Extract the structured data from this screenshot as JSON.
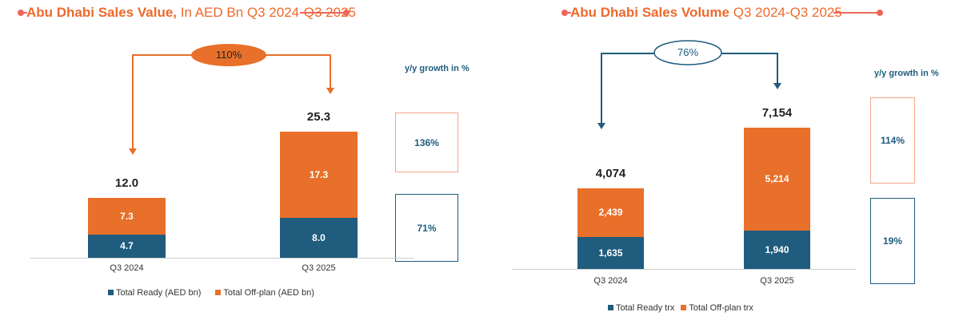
{
  "colors": {
    "ready": "#1F5C7E",
    "offplan": "#E8702A",
    "title": "#EE6A2C",
    "accent_line": "#F0665A"
  },
  "chart_data": [
    {
      "type": "bar",
      "stacked": true,
      "title_bold": "Abu Dhabi Sales Value,",
      "title_rest": " In AED Bn Q3 2024-Q3 2025",
      "categories": [
        "Q3 2024",
        "Q3 2025"
      ],
      "series": [
        {
          "name": "Total Ready (AED bn)",
          "values": [
            4.7,
            8.0
          ],
          "labels": [
            "4.7",
            "8.0"
          ]
        },
        {
          "name": "Total Off-plan (AED bn)",
          "values": [
            7.3,
            17.3
          ],
          "labels": [
            "7.3",
            "17.3"
          ]
        }
      ],
      "totals": [
        "12.0",
        "25.3"
      ],
      "total_growth": "110%",
      "growth_label": "y/y growth in %",
      "growth": {
        "offplan": "136%",
        "ready": "71%"
      },
      "legend": "bottom"
    },
    {
      "type": "bar",
      "stacked": true,
      "title_bold": "Abu Dhabi Sales Volume",
      "title_rest": " Q3 2024-Q3 2025",
      "categories": [
        "Q3 2024",
        "Q3 2025"
      ],
      "series": [
        {
          "name": "Total Ready trx",
          "values": [
            1635,
            1940
          ],
          "labels": [
            "1,635",
            "1,940"
          ]
        },
        {
          "name": "Total Off-plan trx",
          "values": [
            2439,
            5214
          ],
          "labels": [
            "2,439",
            "5,214"
          ]
        }
      ],
      "totals": [
        "4,074",
        "7,154"
      ],
      "total_growth": "76%",
      "growth_label": "y/y growth in %",
      "growth": {
        "offplan": "114%",
        "ready": "19%"
      },
      "legend": "bottom"
    }
  ]
}
